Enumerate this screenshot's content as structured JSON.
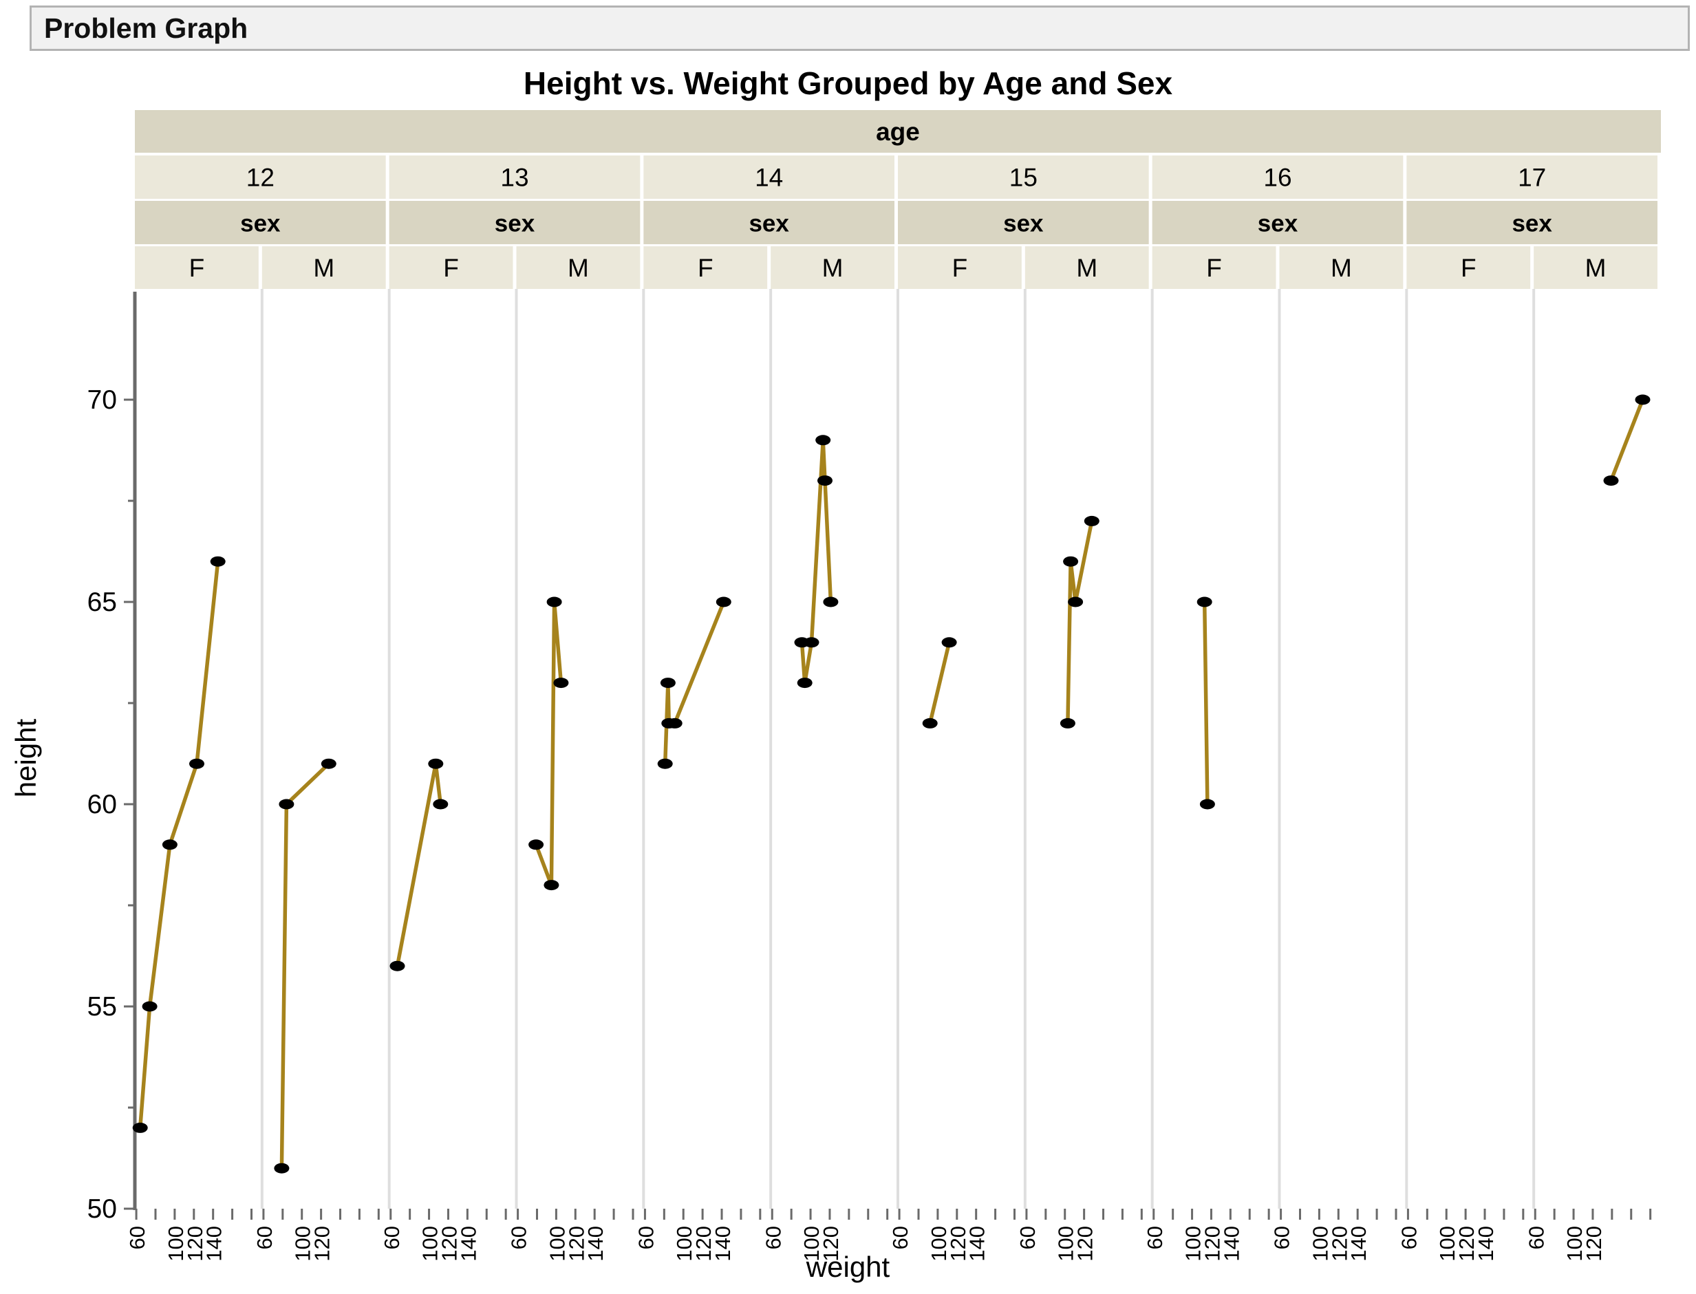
{
  "window": {
    "title": "Problem Graph"
  },
  "chart_data": {
    "type": "line",
    "title": "Height vs. Weight Grouped by Age and Sex",
    "xlabel": "weight",
    "ylabel": "height",
    "facet_header_labels": {
      "age": "age",
      "sex": "sex"
    },
    "ages": [
      "12",
      "13",
      "14",
      "15",
      "16",
      "17"
    ],
    "sexes": [
      "F",
      "M"
    ],
    "ylim": [
      50,
      72.5
    ],
    "yticks": [
      50,
      55,
      60,
      65,
      70
    ],
    "yminorticks": [
      52.5,
      57.5,
      62.5,
      67.5
    ],
    "xlim": [
      58.5,
      191
    ],
    "xticks_all": [
      60,
      80,
      100,
      120,
      140,
      160,
      180
    ],
    "grid": "off",
    "legend": "none",
    "line_color": "#a6831c",
    "marker_color": "#000000",
    "panels": [
      {
        "age": "12",
        "sex": "F",
        "xtick_labels": [
          60,
          100,
          120,
          140
        ],
        "points": [
          [
            64,
            52
          ],
          [
            74,
            55
          ],
          [
            95,
            59
          ],
          [
            123,
            61
          ],
          [
            145,
            66
          ]
        ]
      },
      {
        "age": "12",
        "sex": "M",
        "xtick_labels": [
          60,
          100,
          120
        ],
        "points": [
          [
            79,
            51
          ],
          [
            84,
            60
          ],
          [
            128,
            61
          ]
        ]
      },
      {
        "age": "13",
        "sex": "F",
        "xtick_labels": [
          60,
          100,
          120,
          140
        ],
        "points": [
          [
            67,
            56
          ],
          [
            107,
            61
          ],
          [
            112,
            60
          ]
        ]
      },
      {
        "age": "13",
        "sex": "M",
        "xtick_labels": [
          60,
          100,
          120,
          140
        ],
        "points": [
          [
            79,
            59
          ],
          [
            95,
            58
          ],
          [
            98,
            65
          ],
          [
            105,
            63
          ]
        ]
      },
      {
        "age": "14",
        "sex": "F",
        "xtick_labels": [
          60,
          100,
          120,
          140
        ],
        "points": [
          [
            81,
            61
          ],
          [
            84,
            63
          ],
          [
            85,
            62
          ],
          [
            91,
            62
          ],
          [
            142,
            65
          ]
        ]
      },
      {
        "age": "14",
        "sex": "M",
        "xtick_labels": [
          60,
          100,
          120
        ],
        "points": [
          [
            91,
            64
          ],
          [
            94,
            63
          ],
          [
            101,
            64
          ],
          [
            113,
            69
          ],
          [
            115,
            68
          ],
          [
            121,
            65
          ]
        ]
      },
      {
        "age": "15",
        "sex": "F",
        "xtick_labels": [
          60,
          100,
          120,
          140
        ],
        "points": [
          [
            92,
            62
          ],
          [
            112,
            64
          ]
        ]
      },
      {
        "age": "15",
        "sex": "M",
        "xtick_labels": [
          60,
          100,
          120
        ],
        "points": [
          [
            103,
            62
          ],
          [
            106,
            66
          ],
          [
            111,
            65
          ],
          [
            128,
            67
          ]
        ]
      },
      {
        "age": "16",
        "sex": "F",
        "xtick_labels": [
          60,
          100,
          120,
          140
        ],
        "points": [
          [
            113,
            65
          ],
          [
            116,
            60
          ]
        ]
      },
      {
        "age": "16",
        "sex": "M",
        "xtick_labels": [
          60,
          100,
          120,
          140
        ],
        "points": []
      },
      {
        "age": "17",
        "sex": "F",
        "xtick_labels": [
          60,
          100,
          120,
          140
        ],
        "points": []
      },
      {
        "age": "17",
        "sex": "M",
        "xtick_labels": [
          60,
          100,
          120
        ],
        "points": [
          [
            139,
            68
          ],
          [
            172,
            70
          ]
        ]
      }
    ]
  },
  "colors": {
    "band_dark": "#d9d5c2",
    "band_light": "#ebe8da",
    "panel_separator": "#dedede",
    "axis": "#6a6a6a",
    "titlebar_bg": "#f1f1f1",
    "titlebar_border": "#b3b3b3"
  }
}
